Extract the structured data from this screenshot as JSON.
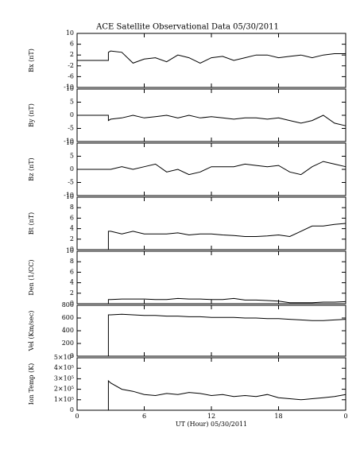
{
  "chart_data": [
    {
      "type": "line",
      "title": "ACE Satellite Observational Data   05/30/2011",
      "ylabel": "Bx (nT)",
      "xlim": [
        0,
        24
      ],
      "ylim": [
        -10,
        10
      ],
      "yticks": [
        -10,
        -6,
        -2,
        2,
        6,
        10
      ],
      "x": [
        0,
        2.8,
        2.8,
        3,
        4,
        5,
        6,
        7,
        8,
        9,
        10,
        11,
        12,
        13,
        14,
        15,
        16,
        17,
        18,
        19,
        20,
        21,
        22,
        23,
        24
      ],
      "series": [
        {
          "color": "#000000",
          "values": [
            0,
            0,
            3,
            3.5,
            3,
            -1,
            0.5,
            1,
            -0.5,
            2,
            1,
            -1,
            1,
            1.5,
            0,
            1,
            2,
            2,
            1,
            1.5,
            2,
            1,
            2,
            2.5,
            2.5
          ]
        }
      ]
    },
    {
      "type": "line",
      "ylabel": "By (nT)",
      "xlim": [
        0,
        24
      ],
      "ylim": [
        -10,
        10
      ],
      "yticks": [
        -10,
        -5,
        0,
        5,
        10
      ],
      "x": [
        0,
        2.8,
        2.8,
        3,
        4,
        5,
        6,
        7,
        8,
        9,
        10,
        11,
        12,
        13,
        14,
        15,
        16,
        17,
        18,
        19,
        20,
        21,
        22,
        23,
        24
      ],
      "series": [
        {
          "color": "#000000",
          "values": [
            0,
            0,
            -2,
            -1.5,
            -1,
            0,
            -1,
            -0.5,
            0,
            -1,
            0,
            -1,
            -0.5,
            -1,
            -1.5,
            -1,
            -1,
            -1.5,
            -1,
            -2,
            -3,
            -2,
            0,
            -3,
            -4
          ]
        }
      ]
    },
    {
      "type": "line",
      "ylabel": "Bz (nT)",
      "xlim": [
        0,
        24
      ],
      "ylim": [
        -10,
        10
      ],
      "yticks": [
        -10,
        -5,
        0,
        5,
        10
      ],
      "x": [
        0,
        2.8,
        2.8,
        3,
        4,
        5,
        6,
        7,
        8,
        9,
        10,
        11,
        12,
        13,
        14,
        15,
        16,
        17,
        18,
        19,
        20,
        21,
        22,
        23,
        24
      ],
      "series": [
        {
          "color": "#000000",
          "values": [
            0,
            0,
            0,
            0,
            1,
            0,
            1,
            2,
            -1,
            0,
            -2,
            -1,
            1,
            1,
            1,
            2,
            1.5,
            1,
            1.5,
            -1,
            -2,
            1,
            3,
            2,
            1
          ]
        }
      ]
    },
    {
      "type": "line",
      "ylabel": "Bt (nT)",
      "xlim": [
        0,
        24
      ],
      "ylim": [
        0,
        10
      ],
      "yticks": [
        0,
        2,
        4,
        6,
        8,
        10
      ],
      "x": [
        0,
        2.8,
        2.8,
        3,
        4,
        5,
        6,
        7,
        8,
        9,
        10,
        11,
        12,
        13,
        14,
        15,
        16,
        17,
        18,
        19,
        20,
        21,
        22,
        23,
        24
      ],
      "series": [
        {
          "color": "#000000",
          "values": [
            0,
            0,
            3.5,
            3.5,
            3,
            3.5,
            3,
            3,
            3,
            3.2,
            2.8,
            3,
            3,
            2.8,
            2.7,
            2.5,
            2.5,
            2.6,
            2.8,
            2.5,
            3.5,
            4.5,
            4.5,
            4.8,
            5
          ]
        }
      ]
    },
    {
      "type": "line",
      "ylabel": "Den (1/CC)",
      "xlim": [
        0,
        24
      ],
      "ylim": [
        0,
        10
      ],
      "yticks": [
        0,
        2,
        4,
        6,
        8,
        10
      ],
      "x": [
        0,
        2.8,
        2.8,
        3,
        4,
        5,
        6,
        7,
        8,
        9,
        10,
        11,
        12,
        13,
        14,
        15,
        16,
        17,
        18,
        19,
        20,
        21,
        22,
        23,
        24
      ],
      "series": [
        {
          "color": "#000000",
          "values": [
            0,
            0,
            0.8,
            0.8,
            0.9,
            0.9,
            0.9,
            0.8,
            0.8,
            1,
            0.9,
            0.9,
            0.8,
            0.8,
            1,
            0.7,
            0.7,
            0.6,
            0.5,
            0.2,
            0.2,
            0.2,
            0.3,
            0.3,
            0.4
          ]
        }
      ]
    },
    {
      "type": "line",
      "ylabel": "Vel (Km/sec)",
      "xlim": [
        0,
        24
      ],
      "ylim": [
        0,
        800
      ],
      "yticks": [
        0,
        200,
        400,
        600,
        800
      ],
      "x": [
        0,
        2.8,
        2.8,
        3,
        4,
        5,
        6,
        7,
        8,
        9,
        10,
        11,
        12,
        13,
        14,
        15,
        16,
        17,
        18,
        19,
        20,
        21,
        22,
        23,
        24
      ],
      "series": [
        {
          "color": "#000000",
          "values": [
            0,
            0,
            650,
            650,
            660,
            650,
            640,
            640,
            630,
            630,
            620,
            620,
            610,
            610,
            610,
            600,
            600,
            590,
            590,
            580,
            570,
            560,
            560,
            570,
            580
          ]
        }
      ]
    },
    {
      "type": "line",
      "ylabel": "Ion Temp (K)",
      "xlabel": "UT (Hour)   05/30/2011",
      "xlim": [
        0,
        24
      ],
      "xticks": [
        0,
        6,
        12,
        18,
        {
          "value": 24,
          "label": "0"
        }
      ],
      "ylim": [
        0,
        500000
      ],
      "yticks": [
        0,
        {
          "value": 100000,
          "label": "1×10⁵"
        },
        {
          "value": 200000,
          "label": "2×10⁵"
        },
        {
          "value": 300000,
          "label": "3×10⁵"
        },
        {
          "value": 400000,
          "label": "4×10⁵"
        },
        {
          "value": 500000,
          "label": "5×10⁵"
        }
      ],
      "x": [
        0,
        2.8,
        2.8,
        3,
        4,
        5,
        6,
        7,
        8,
        9,
        10,
        11,
        12,
        13,
        14,
        15,
        16,
        17,
        18,
        19,
        20,
        21,
        22,
        23,
        24
      ],
      "series": [
        {
          "color": "#000000",
          "values": [
            0,
            0,
            280000,
            260000,
            200000,
            180000,
            150000,
            140000,
            160000,
            150000,
            170000,
            160000,
            140000,
            150000,
            130000,
            140000,
            130000,
            150000,
            120000,
            110000,
            100000,
            110000,
            120000,
            130000,
            150000
          ]
        }
      ]
    }
  ]
}
